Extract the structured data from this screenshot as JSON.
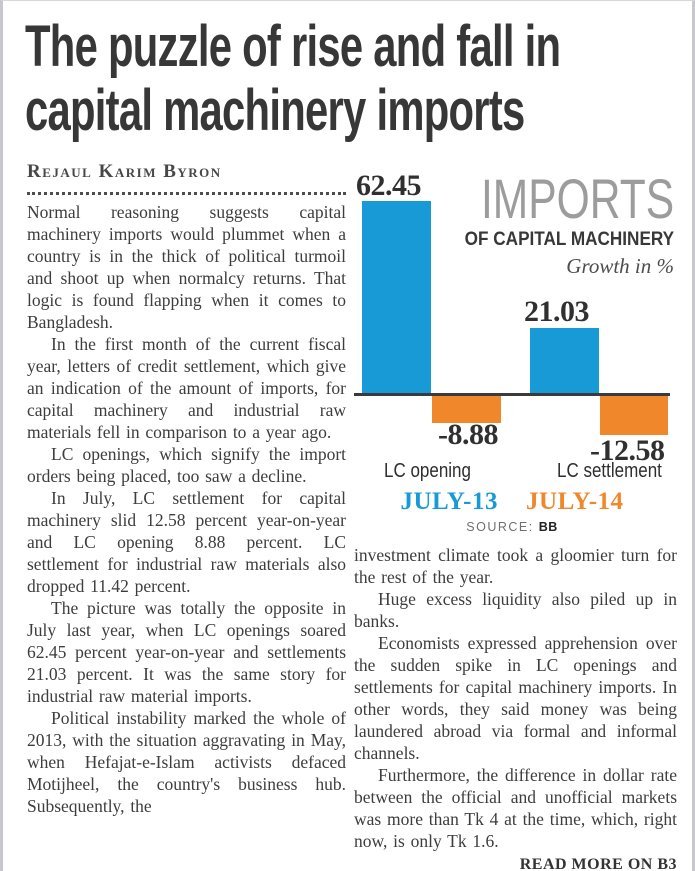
{
  "article": {
    "headline_lines": [
      "The puzzle of rise and fall in",
      "capital machinery imports"
    ],
    "byline": "Rejaul Karim Byron",
    "left_paragraphs": [
      "Normal reasoning suggests capital machinery imports would plummet when a country is in the thick of political turmoil and shoot up when normalcy returns. That logic is found flapping when it comes to Bangladesh.",
      "In the first month of the current fiscal year, letters of credit settlement, which give an indication of the amount of imports, for capital machinery and industrial raw materials fell in comparison to a year ago.",
      "LC openings, which signify the import orders being placed, too saw a decline.",
      "In July, LC settlement for capital machinery slid 12.58 percent year-on-year and LC opening 8.88 percent. LC settlement for industrial raw materials also dropped 11.42 percent.",
      "The picture was totally the opposite in July last year, when LC openings soared 62.45 percent year-on-year and settlements 21.03 percent. It was the same story for industrial raw material imports.",
      "Political instability marked the whole of 2013, with the situation aggravating in May, when Hefajat-e-Islam activists defaced Motijheel, the country's business hub. Subsequently, the"
    ],
    "right_paragraphs": [
      "investment climate took a gloomier turn for the rest of the year.",
      "Huge excess liquidity also piled up in banks.",
      "Economists expressed apprehension over the sudden spike in LC openings and settlements for capital machinery imports. In other words, they said money was being laundered abroad via formal and informal channels.",
      "Furthermore, the difference in dollar rate between the official and unofficial markets was more than Tk 4 at the time, which, right now, is only Tk 1.6."
    ],
    "read_more": "READ MORE ON B3"
  },
  "chart_data": {
    "type": "bar",
    "title": "IMPORTS",
    "subtitle": "OF CAPITAL MACHINERY",
    "unit_label": "Growth in %",
    "categories": [
      "LC opening",
      "LC settlement"
    ],
    "series": [
      {
        "name": "JULY-13",
        "color": "#189ad6",
        "values": [
          62.45,
          21.03
        ]
      },
      {
        "name": "JULY-14",
        "color": "#f0882b",
        "values": [
          -8.88,
          -12.58
        ]
      }
    ],
    "ylim": [
      -15,
      70
    ],
    "grid": false,
    "legend_position": "bottom",
    "source_label": "SOURCE:",
    "source": "BB"
  }
}
